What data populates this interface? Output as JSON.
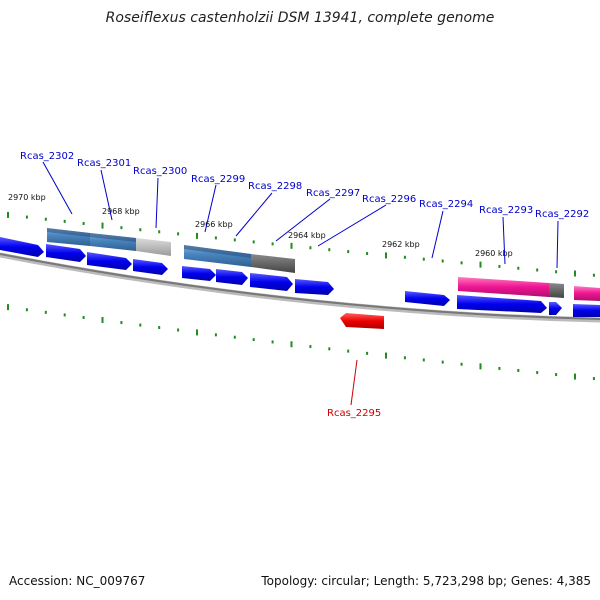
{
  "header": {
    "title": "Roseiflexus castenholzii DSM 13941, complete genome"
  },
  "footer": {
    "accession": "Accession: NC_009767",
    "summary": "Topology: circular; Length: 5,723,298 bp; Genes: 4,385"
  },
  "colors": {
    "forward_gene": "#0000ee",
    "reverse_gene": "#ee0000",
    "label_forward": "#0000cc",
    "label_reverse": "#cc0000",
    "tick": "#228b22",
    "backbone": "#888888"
  },
  "scale_labels": [
    "2970 kbp",
    "2968 kbp",
    "2966 kbp",
    "2964 kbp",
    "2962 kbp",
    "2960 kbp"
  ],
  "gene_labels": [
    {
      "name": "Rcas_2302",
      "strand": "forward"
    },
    {
      "name": "Rcas_2301",
      "strand": "forward"
    },
    {
      "name": "Rcas_2300",
      "strand": "forward"
    },
    {
      "name": "Rcas_2299",
      "strand": "forward"
    },
    {
      "name": "Rcas_2298",
      "strand": "forward"
    },
    {
      "name": "Rcas_2297",
      "strand": "forward"
    },
    {
      "name": "Rcas_2296",
      "strand": "forward"
    },
    {
      "name": "Rcas_2294",
      "strand": "forward"
    },
    {
      "name": "Rcas_2293",
      "strand": "forward"
    },
    {
      "name": "Rcas_2292",
      "strand": "forward"
    },
    {
      "name": "Rcas_2295",
      "strand": "reverse"
    }
  ]
}
